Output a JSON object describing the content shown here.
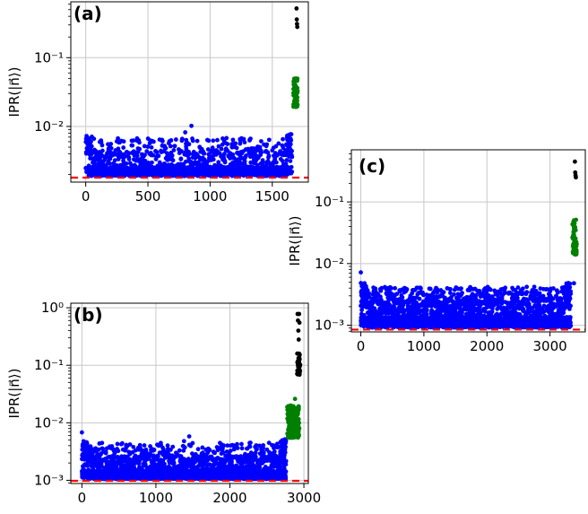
{
  "chart_data": [
    {
      "type": "scatter",
      "panel_label": "(a)",
      "ylabel": "IPR(|n⃗⟩)",
      "yscale": "log",
      "xlim": [
        -120,
        1790
      ],
      "ylim": [
        0.00155,
        0.65
      ],
      "xticks": [
        0,
        500,
        1000,
        1500
      ],
      "xtick_labels": [
        "0",
        "500",
        "1000",
        "1500"
      ],
      "yticks": [
        0.01,
        0.1
      ],
      "ytick_labels": [
        "10⁻²",
        "10⁻¹"
      ],
      "grid": true,
      "reference_line": {
        "y": 0.0018,
        "color": "#ff0000",
        "style": "dashed"
      },
      "colors": {
        "bulk": "#0000ff",
        "intermediate": "#008000",
        "localized": "#000000"
      },
      "bulk": {
        "n": 1660,
        "ymin": 0.00185,
        "typ_low": 0.0019,
        "typ_high": 0.0045,
        "max": 0.0068,
        "outliers": [
          {
            "x": 850,
            "y": 0.0102
          },
          {
            "x": 800,
            "y": 0.0082
          },
          {
            "x": 1240,
            "y": 0.0065
          },
          {
            "x": 370,
            "y": 0.0062
          }
        ]
      },
      "intermediate": {
        "x_start": 1668,
        "x_end": 1705,
        "ymin": 0.019,
        "ymax": 0.05
      },
      "localized": {
        "x": [
          1695,
          1697,
          1699,
          1701
        ],
        "y": [
          0.52,
          0.36,
          0.31,
          0.28
        ]
      }
    },
    {
      "type": "scatter",
      "panel_label": "(b)",
      "ylabel": "IPR(|n⃗⟩)",
      "yscale": "log",
      "xlim": [
        -150,
        3060
      ],
      "ylim": [
        0.00088,
        1.2
      ],
      "xticks": [
        0,
        1000,
        2000,
        3000
      ],
      "xtick_labels": [
        "0",
        "1000",
        "2000",
        "3000"
      ],
      "yticks": [
        0.001,
        0.01,
        0.1,
        1
      ],
      "ytick_labels": [
        "10⁻³",
        "10⁻²",
        "10⁻¹",
        "10⁰"
      ],
      "grid": true,
      "reference_line": {
        "y": 0.00098,
        "color": "#ff0000",
        "style": "dashed"
      },
      "colors": {
        "bulk": "#0000ff",
        "intermediate": "#008000",
        "localized": "#000000"
      },
      "bulk": {
        "n": 2760,
        "ymin": 0.001,
        "typ_low": 0.00105,
        "typ_high": 0.0027,
        "max": 0.0045,
        "outliers": [
          {
            "x": 0,
            "y": 0.0068
          },
          {
            "x": 1450,
            "y": 0.0058
          },
          {
            "x": 1380,
            "y": 0.0048
          },
          {
            "x": 650,
            "y": 0.0042
          },
          {
            "x": 2400,
            "y": 0.004
          }
        ]
      },
      "intermediate": {
        "x_start": 2775,
        "x_end": 2945,
        "ymin": 0.0055,
        "ymax": 0.02,
        "extra": [
          {
            "x": 2880,
            "y": 0.026
          }
        ]
      },
      "localized": {
        "x_start": 2905,
        "x_end": 2950,
        "ymin": 0.065,
        "ymax": 0.16,
        "top": [
          {
            "x": 2915,
            "y": 0.78
          },
          {
            "x": 2935,
            "y": 0.78
          },
          {
            "x": 2920,
            "y": 0.6
          },
          {
            "x": 2940,
            "y": 0.55
          },
          {
            "x": 2925,
            "y": 0.4
          },
          {
            "x": 2930,
            "y": 0.28
          }
        ]
      }
    },
    {
      "type": "scatter",
      "panel_label": "(c)",
      "ylabel": "IPR(|n⃗⟩)",
      "yscale": "log",
      "xlim": [
        -150,
        3560
      ],
      "ylim": [
        0.00078,
        0.7
      ],
      "xticks": [
        0,
        1000,
        2000,
        3000
      ],
      "xtick_labels": [
        "0",
        "1000",
        "2000",
        "3000"
      ],
      "yticks": [
        0.001,
        0.01,
        0.1
      ],
      "ytick_labels": [
        "10⁻³",
        "10⁻²",
        "10⁻¹"
      ],
      "grid": true,
      "reference_line": {
        "y": 0.00085,
        "color": "#ff0000",
        "style": "dashed"
      },
      "colors": {
        "bulk": "#0000ff",
        "intermediate": "#008000",
        "localized": "#000000"
      },
      "bulk": {
        "n": 3330,
        "ymin": 0.00088,
        "typ_low": 0.00092,
        "typ_high": 0.0028,
        "max": 0.0042,
        "outliers": [
          {
            "x": 0,
            "y": 0.0072
          },
          {
            "x": 3380,
            "y": 0.0048
          },
          {
            "x": 330,
            "y": 0.004
          },
          {
            "x": 1880,
            "y": 0.0036
          }
        ]
      },
      "intermediate": {
        "x_start": 3355,
        "x_end": 3425,
        "ymin": 0.014,
        "ymax": 0.052
      },
      "localized": {
        "x": [
          3395,
          3400,
          3405,
          3410
        ],
        "y": [
          0.45,
          0.3,
          0.27,
          0.25
        ]
      }
    }
  ]
}
